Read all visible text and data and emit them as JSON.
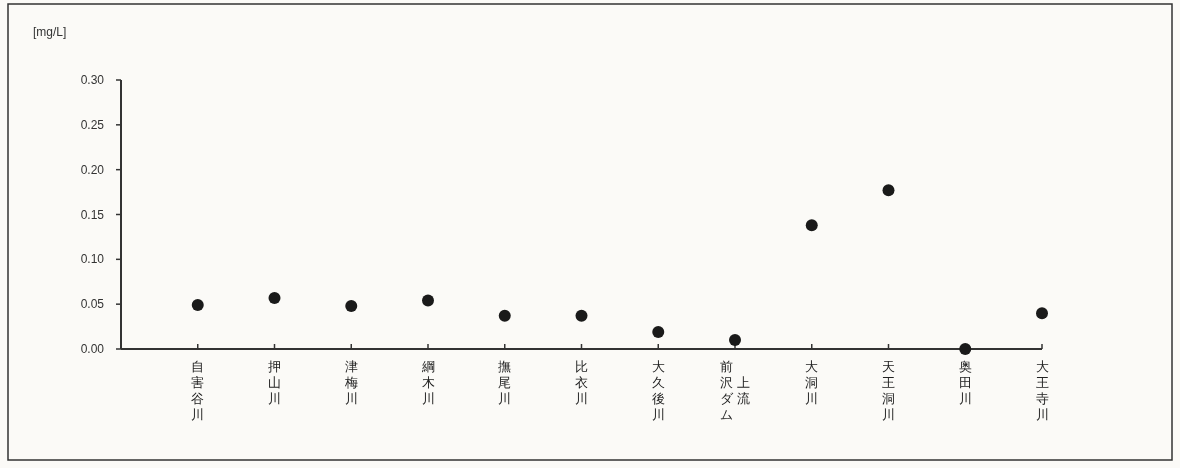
{
  "chart_data": {
    "type": "scatter",
    "ylabel": "[mg/L]",
    "categories": [
      "自害谷川",
      "押山川",
      "津梅川",
      "綱木川",
      "撫尾川",
      "比衣川",
      "大久後川",
      "前沢ダム上流",
      "大洞川",
      "天王洞川",
      "奥田川",
      "大王寺川"
    ],
    "series": [
      {
        "color": "#1a1a1a",
        "values": [
          0.049,
          0.057,
          0.048,
          0.054,
          0.037,
          0.037,
          0.019,
          0.01,
          0.138,
          0.177,
          0.0,
          0.04
        ]
      }
    ],
    "ylim": [
      0,
      0.3
    ],
    "yticks": [
      {
        "value": 0,
        "label": "0.00"
      },
      {
        "value": 0.05,
        "label": "0.05"
      },
      {
        "value": 0.1,
        "label": "0.10"
      },
      {
        "value": 0.15,
        "label": "0.15"
      },
      {
        "value": 0.2,
        "label": "0.20"
      },
      {
        "value": 0.25,
        "label": "0.25"
      },
      {
        "value": 0.3,
        "label": "0.30"
      }
    ],
    "marker": "circle",
    "grid": false
  }
}
